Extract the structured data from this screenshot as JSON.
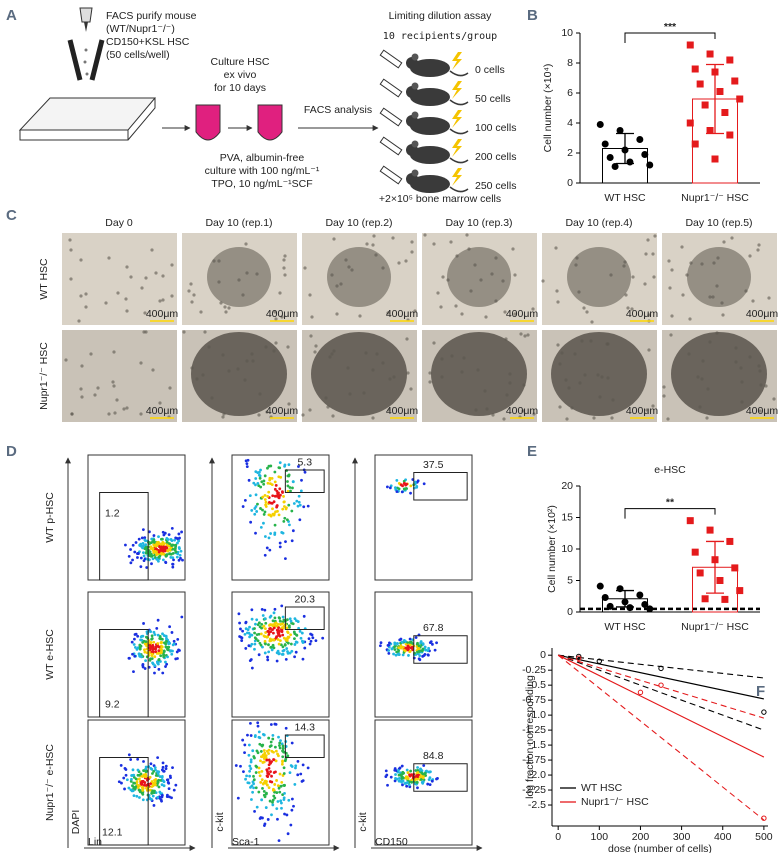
{
  "panels": {
    "a": {
      "label": "A",
      "purify": [
        "FACS purify mouse",
        "(WT/Nupr1⁻/⁻)",
        "CD150+KSL HSC",
        "(50 cells/well)"
      ],
      "culture": [
        "Culture HSC",
        "ex vivo",
        "for 10 days"
      ],
      "medium": [
        "PVA, albumin-free",
        "culture with 100 ng/mL⁻¹",
        "TPO, 10 ng/mL⁻¹SCF"
      ],
      "analysis": "FACS analysis",
      "assay_title": "Limiting dilution assay",
      "assay_subtitle": "10 recipients/group",
      "doses": [
        "0 cells",
        "50 cells",
        "100 cells",
        "200 cells",
        "250 cells"
      ],
      "note": "+2×10⁵ bone marrow cells"
    },
    "c": {
      "label": "C",
      "columns": [
        "Day 0",
        "Day 10 (rep.1)",
        "Day 10 (rep.2)",
        "Day 10 (rep.3)",
        "Day 10 (rep.4)",
        "Day 10 (rep.5)"
      ],
      "rows": [
        "WT HSC",
        "Nupr1⁻/⁻ HSC"
      ],
      "scale_bar": "400μm"
    },
    "d": {
      "label": "D",
      "rows": [
        "WT p-HSC",
        "WT e-HSC",
        "Nupr1⁻/⁻ e-HSC"
      ],
      "x_labels": [
        "Lin",
        "Sca-1",
        "CD150"
      ],
      "y_labels": [
        "DAPI",
        "c-kit",
        "c-kit"
      ],
      "gates": [
        [
          1.2,
          5.3,
          37.5
        ],
        [
          9.2,
          20.3,
          67.8
        ],
        [
          12.1,
          14.3,
          84.8
        ]
      ]
    }
  },
  "chart_data": [
    {
      "type": "bar",
      "panel_label": "B",
      "ylabel": "Cell number (×10⁴)",
      "categories": [
        "WT HSC",
        "Nupr1⁻/⁻ HSC"
      ],
      "values": [
        2.3,
        5.6
      ],
      "errors": [
        1.0,
        2.3
      ],
      "colors": [
        "#000000",
        "#e41a1c"
      ],
      "markers": [
        "circle",
        "square"
      ],
      "points": [
        [
          3.9,
          3.5,
          2.9,
          2.6,
          2.2,
          1.9,
          1.7,
          1.4,
          1.2,
          1.1
        ],
        [
          9.2,
          8.6,
          8.2,
          7.6,
          7.4,
          6.8,
          6.6,
          6.1,
          5.6,
          5.2,
          4.7,
          4.0,
          3.5,
          3.2,
          2.6,
          1.6
        ]
      ],
      "significance": "***",
      "ylim": [
        0,
        10
      ],
      "yticks": [
        0,
        2,
        4,
        6,
        8,
        10
      ]
    },
    {
      "type": "bar",
      "panel_label": "E",
      "title": "e-HSC",
      "ylabel": "Cell number (×10²)",
      "categories": [
        "WT HSC",
        "Nupr1⁻/⁻ HSC"
      ],
      "values": [
        2.1,
        7.1
      ],
      "errors": [
        1.3,
        4.1
      ],
      "colors": [
        "#000000",
        "#e41a1c"
      ],
      "markers": [
        "circle",
        "square"
      ],
      "points": [
        [
          4.1,
          3.7,
          2.7,
          2.3,
          1.6,
          1.2,
          0.9,
          0.7,
          0.5
        ],
        [
          14.5,
          13.0,
          11.2,
          9.5,
          8.3,
          7.0,
          6.2,
          5.0,
          3.4,
          2.1,
          2.0
        ]
      ],
      "significance": "**",
      "reference_line": 0.5,
      "ylim": [
        0,
        20
      ],
      "yticks": [
        0,
        5,
        10,
        15,
        20
      ]
    },
    {
      "type": "line",
      "panel_label": "F",
      "xlabel": "dose (number of cells)",
      "ylabel": "log fraction nonresponding",
      "series": [
        {
          "name": "WT HSC",
          "color": "#000000",
          "x": [
            0,
            500
          ],
          "values": [
            0,
            -0.73
          ],
          "points_x": [
            50,
            100,
            250,
            500
          ],
          "points_y": [
            -0.02,
            -0.1,
            -0.22,
            -0.95
          ],
          "ci": [
            {
              "x": [
                0,
                500
              ],
              "values": [
                0,
                -0.38
              ]
            },
            {
              "x": [
                0,
                500
              ],
              "values": [
                0,
                -1.25
              ]
            }
          ]
        },
        {
          "name": "Nupr1⁻/⁻ HSC",
          "color": "#e41a1c",
          "x": [
            0,
            500
          ],
          "values": [
            0,
            -1.7
          ],
          "points_x": [
            50,
            200,
            250,
            500
          ],
          "points_y": [
            -0.05,
            -0.62,
            -0.5,
            -2.72
          ],
          "ci": [
            {
              "x": [
                0,
                500
              ],
              "values": [
                0,
                -1.05
              ]
            },
            {
              "x": [
                0,
                500
              ],
              "values": [
                0,
                -2.75
              ]
            }
          ]
        }
      ],
      "xlim": [
        -15,
        510
      ],
      "ylim": [
        -2.85,
        0.12
      ],
      "xticks": [
        0,
        100,
        200,
        300,
        400,
        500
      ],
      "yticks": [
        0,
        -0.25,
        -0.5,
        -0.75,
        {
          "value": -1,
          "label": "-1.0"
        },
        -1.25,
        -1.5,
        -1.75,
        {
          "value": -2,
          "label": "-2.0"
        },
        -2.25,
        -2.5
      ]
    }
  ]
}
